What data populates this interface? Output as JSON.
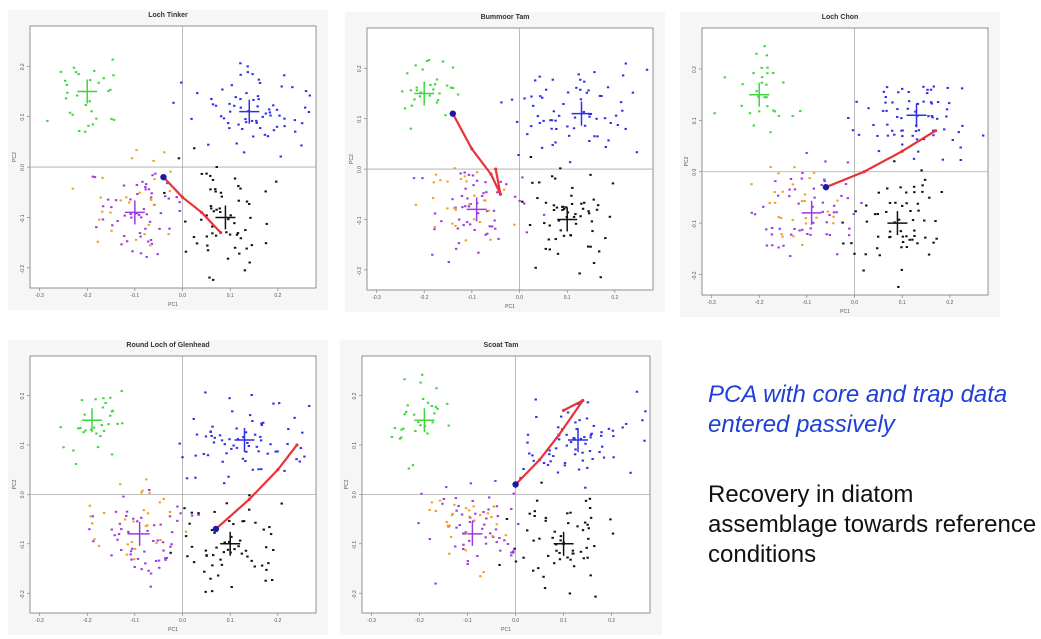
{
  "chart_data": [
    {
      "type": "scatter",
      "title": "Loch Tinker",
      "xlabel": "PC1",
      "ylabel": "PC2",
      "xlim": [
        -0.32,
        0.28
      ],
      "ylim": [
        -0.24,
        0.28
      ],
      "xticks": [
        "-0.3",
        "-0.2",
        "-0.1",
        "0.0",
        "0.1",
        "0.2"
      ],
      "yticks": [
        "-0.2",
        "-0.1",
        "0.0",
        "0.1",
        "0.2"
      ],
      "trajectory": [
        [
          -0.04,
          -0.02
        ],
        [
          0.0,
          -0.06
        ],
        [
          0.04,
          -0.09
        ],
        [
          0.08,
          -0.13
        ]
      ],
      "trajectory_start": [
        -0.04,
        -0.02
      ],
      "centroids": {
        "green": [
          -0.2,
          0.15
        ],
        "blue": [
          0.14,
          0.11
        ],
        "purple": [
          -0.1,
          -0.09
        ],
        "black": [
          0.09,
          -0.1
        ]
      }
    },
    {
      "type": "scatter",
      "title": "Bummoor Tam",
      "xlabel": "PC1",
      "ylabel": "PC2",
      "xlim": [
        -0.32,
        0.28
      ],
      "ylim": [
        -0.24,
        0.28
      ],
      "xticks": [
        "-0.3",
        "-0.2",
        "-0.1",
        "0.0",
        "0.1",
        "0.2"
      ],
      "yticks": [
        "-0.2",
        "-0.1",
        "0.0",
        "0.1",
        "0.2"
      ],
      "trajectory": [
        [
          -0.14,
          0.11
        ],
        [
          -0.1,
          0.04
        ],
        [
          -0.06,
          -0.01
        ],
        [
          -0.04,
          -0.05
        ],
        [
          -0.05,
          0.0
        ]
      ],
      "trajectory_start": [
        -0.14,
        0.11
      ],
      "centroids": {
        "green": [
          -0.2,
          0.15
        ],
        "blue": [
          0.13,
          0.11
        ],
        "purple": [
          -0.09,
          -0.08
        ],
        "black": [
          0.1,
          -0.1
        ]
      }
    },
    {
      "type": "scatter",
      "title": "Loch Chon",
      "xlabel": "PC1",
      "ylabel": "PC2",
      "xlim": [
        -0.32,
        0.28
      ],
      "ylim": [
        -0.24,
        0.28
      ],
      "xticks": [
        "-0.3",
        "-0.2",
        "-0.1",
        "0.0",
        "0.1",
        "0.2"
      ],
      "yticks": [
        "-0.2",
        "-0.1",
        "0.0",
        "0.1",
        "0.2"
      ],
      "trajectory": [
        [
          -0.06,
          -0.03
        ],
        [
          0.02,
          0.0
        ],
        [
          0.1,
          0.04
        ],
        [
          0.17,
          0.08
        ]
      ],
      "trajectory_start": [
        -0.06,
        -0.03
      ],
      "centroids": {
        "green": [
          -0.2,
          0.15
        ],
        "blue": [
          0.13,
          0.11
        ],
        "purple": [
          -0.09,
          -0.08
        ],
        "black": [
          0.09,
          -0.1
        ]
      }
    },
    {
      "type": "scatter",
      "title": "Round Loch of Glenhead",
      "xlabel": "PC1",
      "ylabel": "PC2",
      "xlim": [
        -0.32,
        0.28
      ],
      "ylim": [
        -0.24,
        0.28
      ],
      "xticks": [
        "-0.3",
        "-0.2",
        "-0.1",
        "0.0",
        "0.1",
        "0.2"
      ],
      "yticks": [
        "-0.2",
        "-0.1",
        "0.0",
        "0.1",
        "0.2"
      ],
      "trajectory": [
        [
          0.07,
          -0.07
        ],
        [
          0.14,
          -0.01
        ],
        [
          0.2,
          0.05
        ],
        [
          0.24,
          0.1
        ]
      ],
      "trajectory_start": [
        0.07,
        -0.07
      ],
      "centroids": {
        "green": [
          -0.19,
          0.15
        ],
        "blue": [
          0.13,
          0.11
        ],
        "purple": [
          -0.09,
          -0.08
        ],
        "black": [
          0.1,
          -0.1
        ]
      }
    },
    {
      "type": "scatter",
      "title": "Scoat Tam",
      "xlabel": "PC1",
      "ylabel": "PC2",
      "xlim": [
        -0.32,
        0.28
      ],
      "ylim": [
        -0.24,
        0.28
      ],
      "xticks": [
        "-0.3",
        "-0.2",
        "-0.1",
        "0.0",
        "0.1",
        "0.2"
      ],
      "yticks": [
        "-0.2",
        "-0.1",
        "0.0",
        "0.1",
        "0.2"
      ],
      "trajectory": [
        [
          0.0,
          0.02
        ],
        [
          0.05,
          0.07
        ],
        [
          0.09,
          0.12
        ],
        [
          0.14,
          0.19
        ],
        [
          0.1,
          0.17
        ]
      ],
      "trajectory_start": [
        0.0,
        0.02
      ],
      "centroids": {
        "green": [
          -0.19,
          0.15
        ],
        "blue": [
          0.13,
          0.11
        ],
        "purple": [
          -0.09,
          -0.08
        ],
        "black": [
          0.1,
          -0.1
        ]
      }
    }
  ],
  "note": {
    "title": "PCA with core and trap data entered passively",
    "body": "Recovery in diatom assemblage towards reference conditions"
  },
  "colors": {
    "green": "#3dd63d",
    "blue": "#2f2fe8",
    "purple": "#9b3ce0",
    "orange": "#f0a020",
    "black": "#111111",
    "trajectory": "#e8333a",
    "start": "#1a1aa8"
  }
}
